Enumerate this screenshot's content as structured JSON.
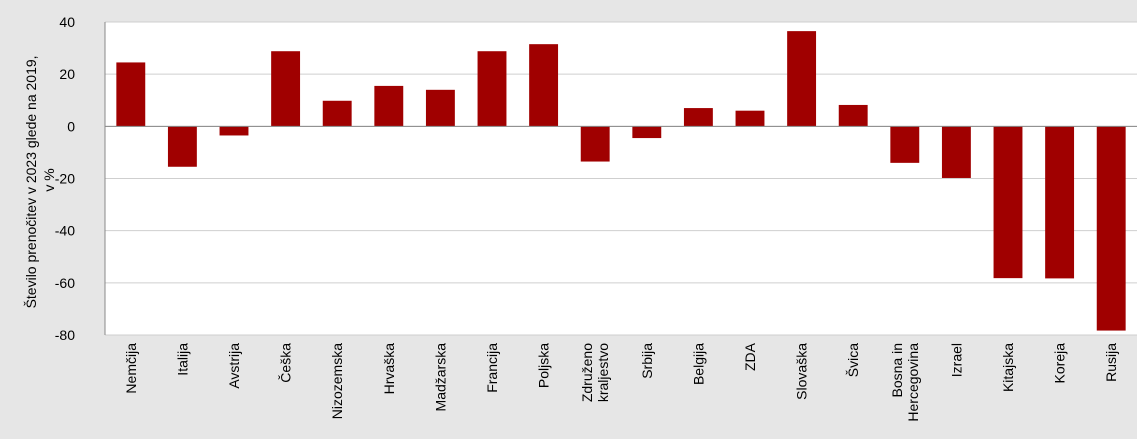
{
  "chart_data": {
    "type": "bar",
    "title": "",
    "xlabel": "",
    "ylabel": [
      "Število prenočitev v 2023 glede na 2019,",
      "v %"
    ],
    "ylim": [
      -80,
      40
    ],
    "yticks": [
      40,
      20,
      0,
      -20,
      -40,
      -60,
      -80
    ],
    "grid": true,
    "legend": "none",
    "bar_color": "#a00000",
    "categories": [
      [
        "Nemčija"
      ],
      [
        "Italija"
      ],
      [
        "Avstrija"
      ],
      [
        "Češka"
      ],
      [
        "Nizozemska"
      ],
      [
        "Hrvaška"
      ],
      [
        "Madžarska"
      ],
      [
        "Francija"
      ],
      [
        "Poljska"
      ],
      [
        "Združeno",
        "kraljestvo"
      ],
      [
        "Srbija"
      ],
      [
        "Belgija"
      ],
      [
        "ZDA"
      ],
      [
        "Slovaška"
      ],
      [
        "Švica"
      ],
      [
        "Bosna in",
        "Hercegovina"
      ],
      [
        "Izrael"
      ],
      [
        "Kitajska"
      ],
      [
        "Koreja"
      ],
      [
        "Rusija"
      ]
    ],
    "values": [
      24.5,
      -15.5,
      -3.5,
      28.8,
      9.8,
      15.5,
      14.0,
      28.8,
      31.5,
      -13.5,
      -4.5,
      7.0,
      6.0,
      36.5,
      8.2,
      -14.0,
      -19.8,
      -58.2,
      -58.3,
      -78.3
    ]
  }
}
